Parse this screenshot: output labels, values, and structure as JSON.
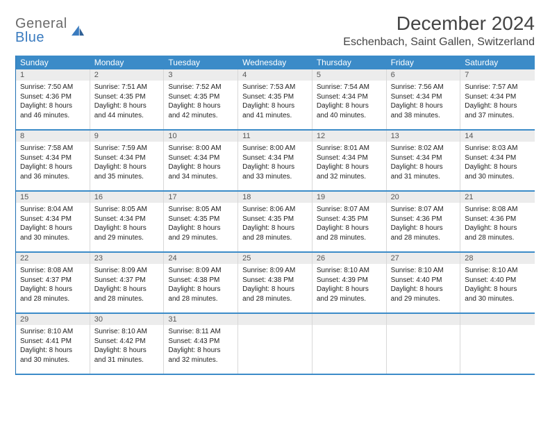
{
  "logo": {
    "word1": "General",
    "word2": "Blue"
  },
  "title": "December 2024",
  "location": "Eschenbach, Saint Gallen, Switzerland",
  "colors": {
    "header_bg": "#3b8bc8",
    "header_text": "#ffffff",
    "daynum_bg": "#ececec",
    "week_border": "#3b8bc8",
    "cell_border": "#d8d8d8",
    "logo_gray": "#6b6b6b",
    "logo_blue": "#3a7bbf"
  },
  "weekdays": [
    "Sunday",
    "Monday",
    "Tuesday",
    "Wednesday",
    "Thursday",
    "Friday",
    "Saturday"
  ],
  "weeks": [
    [
      {
        "n": "1",
        "sr": "Sunrise: 7:50 AM",
        "ss": "Sunset: 4:36 PM",
        "d1": "Daylight: 8 hours",
        "d2": "and 46 minutes."
      },
      {
        "n": "2",
        "sr": "Sunrise: 7:51 AM",
        "ss": "Sunset: 4:35 PM",
        "d1": "Daylight: 8 hours",
        "d2": "and 44 minutes."
      },
      {
        "n": "3",
        "sr": "Sunrise: 7:52 AM",
        "ss": "Sunset: 4:35 PM",
        "d1": "Daylight: 8 hours",
        "d2": "and 42 minutes."
      },
      {
        "n": "4",
        "sr": "Sunrise: 7:53 AM",
        "ss": "Sunset: 4:35 PM",
        "d1": "Daylight: 8 hours",
        "d2": "and 41 minutes."
      },
      {
        "n": "5",
        "sr": "Sunrise: 7:54 AM",
        "ss": "Sunset: 4:34 PM",
        "d1": "Daylight: 8 hours",
        "d2": "and 40 minutes."
      },
      {
        "n": "6",
        "sr": "Sunrise: 7:56 AM",
        "ss": "Sunset: 4:34 PM",
        "d1": "Daylight: 8 hours",
        "d2": "and 38 minutes."
      },
      {
        "n": "7",
        "sr": "Sunrise: 7:57 AM",
        "ss": "Sunset: 4:34 PM",
        "d1": "Daylight: 8 hours",
        "d2": "and 37 minutes."
      }
    ],
    [
      {
        "n": "8",
        "sr": "Sunrise: 7:58 AM",
        "ss": "Sunset: 4:34 PM",
        "d1": "Daylight: 8 hours",
        "d2": "and 36 minutes."
      },
      {
        "n": "9",
        "sr": "Sunrise: 7:59 AM",
        "ss": "Sunset: 4:34 PM",
        "d1": "Daylight: 8 hours",
        "d2": "and 35 minutes."
      },
      {
        "n": "10",
        "sr": "Sunrise: 8:00 AM",
        "ss": "Sunset: 4:34 PM",
        "d1": "Daylight: 8 hours",
        "d2": "and 34 minutes."
      },
      {
        "n": "11",
        "sr": "Sunrise: 8:00 AM",
        "ss": "Sunset: 4:34 PM",
        "d1": "Daylight: 8 hours",
        "d2": "and 33 minutes."
      },
      {
        "n": "12",
        "sr": "Sunrise: 8:01 AM",
        "ss": "Sunset: 4:34 PM",
        "d1": "Daylight: 8 hours",
        "d2": "and 32 minutes."
      },
      {
        "n": "13",
        "sr": "Sunrise: 8:02 AM",
        "ss": "Sunset: 4:34 PM",
        "d1": "Daylight: 8 hours",
        "d2": "and 31 minutes."
      },
      {
        "n": "14",
        "sr": "Sunrise: 8:03 AM",
        "ss": "Sunset: 4:34 PM",
        "d1": "Daylight: 8 hours",
        "d2": "and 30 minutes."
      }
    ],
    [
      {
        "n": "15",
        "sr": "Sunrise: 8:04 AM",
        "ss": "Sunset: 4:34 PM",
        "d1": "Daylight: 8 hours",
        "d2": "and 30 minutes."
      },
      {
        "n": "16",
        "sr": "Sunrise: 8:05 AM",
        "ss": "Sunset: 4:34 PM",
        "d1": "Daylight: 8 hours",
        "d2": "and 29 minutes."
      },
      {
        "n": "17",
        "sr": "Sunrise: 8:05 AM",
        "ss": "Sunset: 4:35 PM",
        "d1": "Daylight: 8 hours",
        "d2": "and 29 minutes."
      },
      {
        "n": "18",
        "sr": "Sunrise: 8:06 AM",
        "ss": "Sunset: 4:35 PM",
        "d1": "Daylight: 8 hours",
        "d2": "and 28 minutes."
      },
      {
        "n": "19",
        "sr": "Sunrise: 8:07 AM",
        "ss": "Sunset: 4:35 PM",
        "d1": "Daylight: 8 hours",
        "d2": "and 28 minutes."
      },
      {
        "n": "20",
        "sr": "Sunrise: 8:07 AM",
        "ss": "Sunset: 4:36 PM",
        "d1": "Daylight: 8 hours",
        "d2": "and 28 minutes."
      },
      {
        "n": "21",
        "sr": "Sunrise: 8:08 AM",
        "ss": "Sunset: 4:36 PM",
        "d1": "Daylight: 8 hours",
        "d2": "and 28 minutes."
      }
    ],
    [
      {
        "n": "22",
        "sr": "Sunrise: 8:08 AM",
        "ss": "Sunset: 4:37 PM",
        "d1": "Daylight: 8 hours",
        "d2": "and 28 minutes."
      },
      {
        "n": "23",
        "sr": "Sunrise: 8:09 AM",
        "ss": "Sunset: 4:37 PM",
        "d1": "Daylight: 8 hours",
        "d2": "and 28 minutes."
      },
      {
        "n": "24",
        "sr": "Sunrise: 8:09 AM",
        "ss": "Sunset: 4:38 PM",
        "d1": "Daylight: 8 hours",
        "d2": "and 28 minutes."
      },
      {
        "n": "25",
        "sr": "Sunrise: 8:09 AM",
        "ss": "Sunset: 4:38 PM",
        "d1": "Daylight: 8 hours",
        "d2": "and 28 minutes."
      },
      {
        "n": "26",
        "sr": "Sunrise: 8:10 AM",
        "ss": "Sunset: 4:39 PM",
        "d1": "Daylight: 8 hours",
        "d2": "and 29 minutes."
      },
      {
        "n": "27",
        "sr": "Sunrise: 8:10 AM",
        "ss": "Sunset: 4:40 PM",
        "d1": "Daylight: 8 hours",
        "d2": "and 29 minutes."
      },
      {
        "n": "28",
        "sr": "Sunrise: 8:10 AM",
        "ss": "Sunset: 4:40 PM",
        "d1": "Daylight: 8 hours",
        "d2": "and 30 minutes."
      }
    ],
    [
      {
        "n": "29",
        "sr": "Sunrise: 8:10 AM",
        "ss": "Sunset: 4:41 PM",
        "d1": "Daylight: 8 hours",
        "d2": "and 30 minutes."
      },
      {
        "n": "30",
        "sr": "Sunrise: 8:10 AM",
        "ss": "Sunset: 4:42 PM",
        "d1": "Daylight: 8 hours",
        "d2": "and 31 minutes."
      },
      {
        "n": "31",
        "sr": "Sunrise: 8:11 AM",
        "ss": "Sunset: 4:43 PM",
        "d1": "Daylight: 8 hours",
        "d2": "and 32 minutes."
      },
      {
        "n": "",
        "sr": "",
        "ss": "",
        "d1": "",
        "d2": "",
        "empty": true
      },
      {
        "n": "",
        "sr": "",
        "ss": "",
        "d1": "",
        "d2": "",
        "empty": true
      },
      {
        "n": "",
        "sr": "",
        "ss": "",
        "d1": "",
        "d2": "",
        "empty": true
      },
      {
        "n": "",
        "sr": "",
        "ss": "",
        "d1": "",
        "d2": "",
        "empty": true
      }
    ]
  ]
}
